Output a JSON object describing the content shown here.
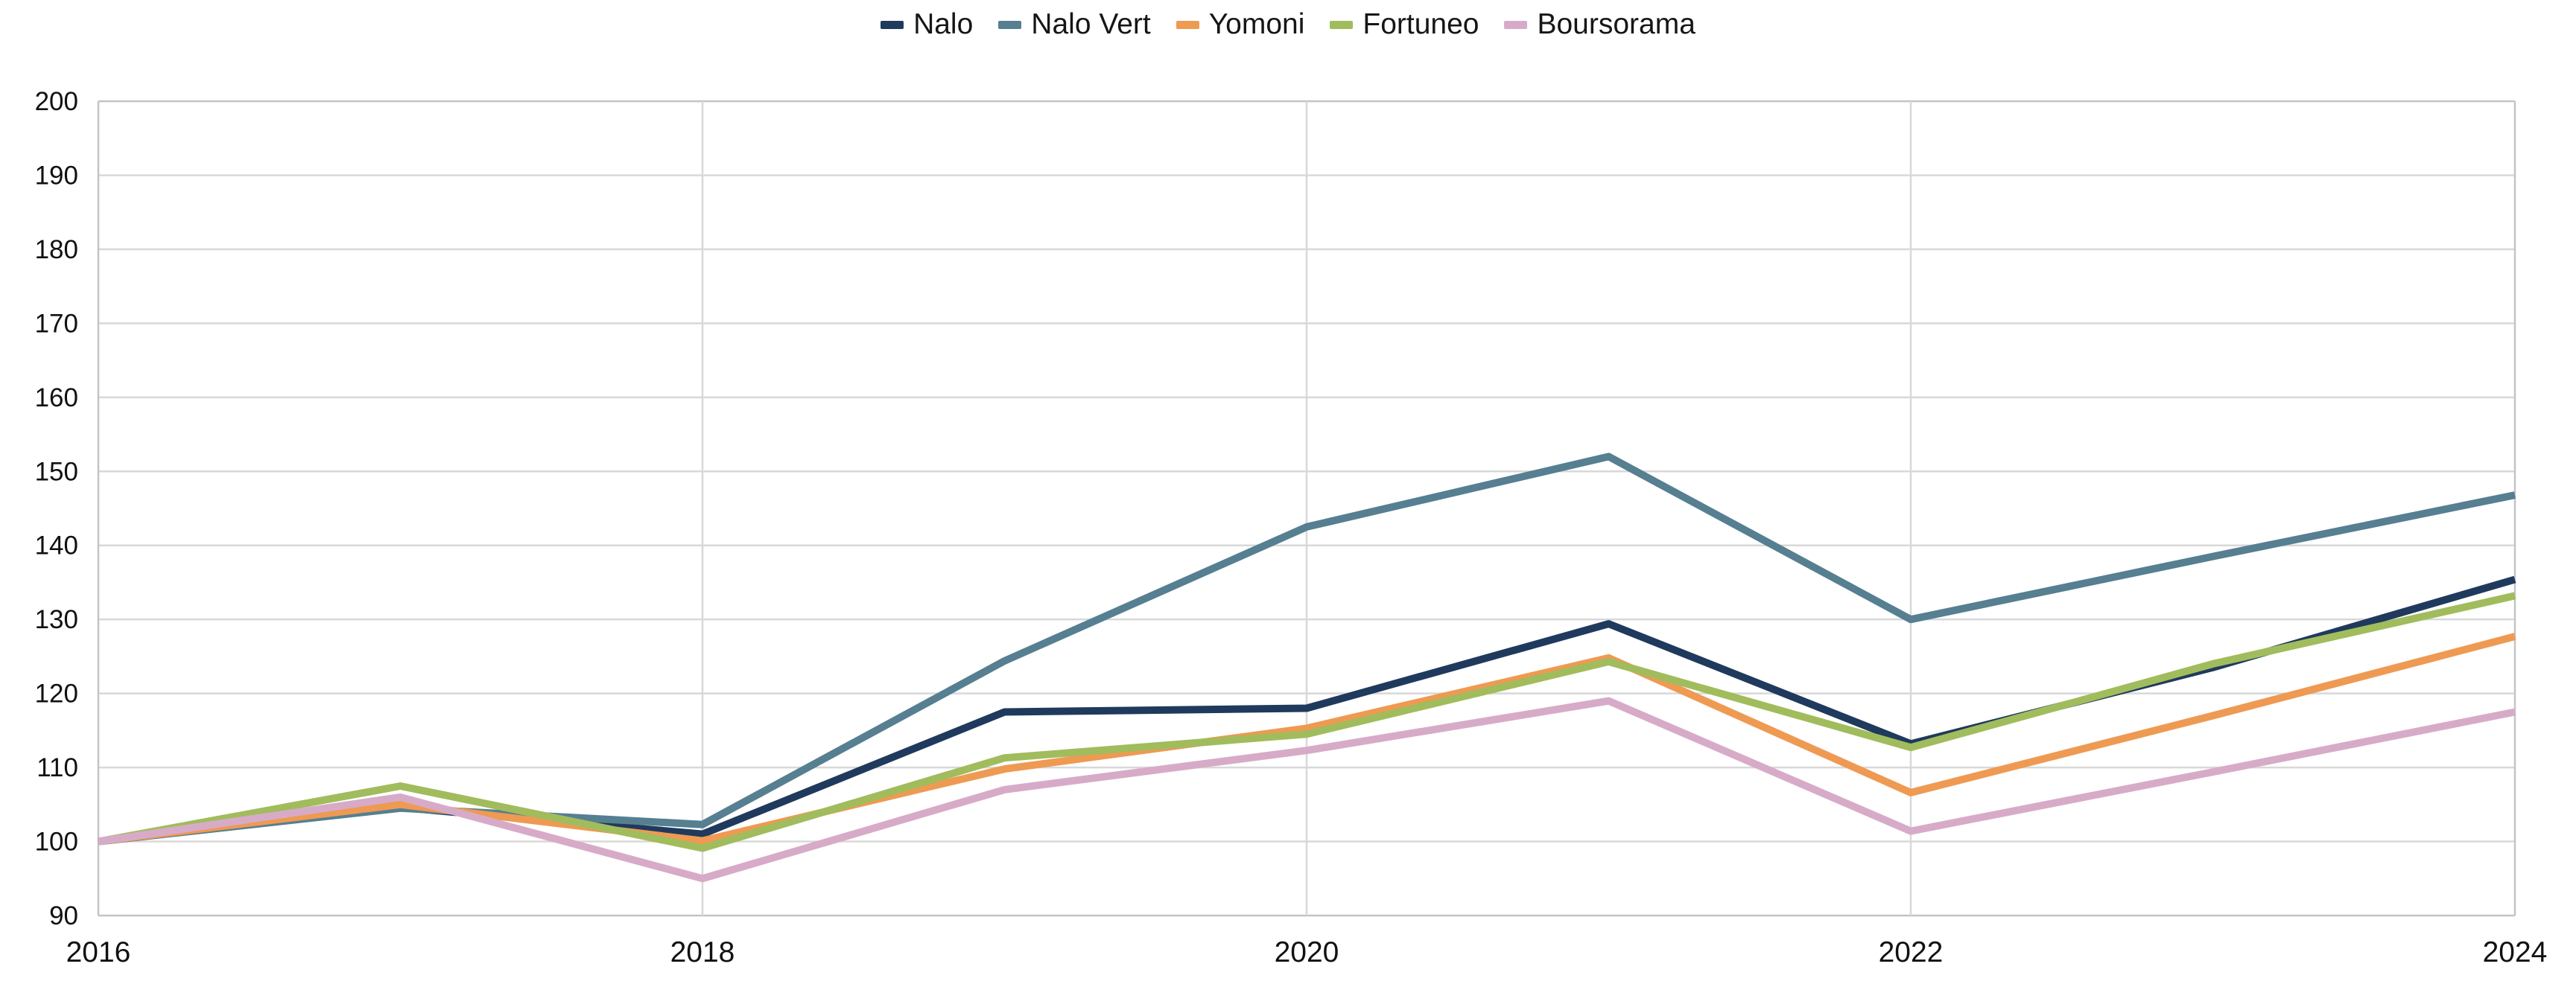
{
  "chart_data": {
    "type": "line",
    "title": "",
    "xlabel": "",
    "ylabel": "",
    "x": [
      2016,
      2017,
      2018,
      2019,
      2020,
      2021,
      2022,
      2023,
      2024
    ],
    "x_tick_labels": [
      "2016",
      "2018",
      "2020",
      "2022",
      "2024"
    ],
    "ylim": [
      90,
      200
    ],
    "y_tick_step": 10,
    "y_tick_labels": [
      "90",
      "100",
      "110",
      "120",
      "130",
      "140",
      "150",
      "160",
      "170",
      "180",
      "190",
      "200"
    ],
    "grid": true,
    "legend_position": "top",
    "series": [
      {
        "name": "Nalo",
        "color": "#1f3a5c",
        "values": [
          100,
          104.6,
          101.0,
          117.5,
          118.0,
          129.4,
          113.2,
          123.5,
          135.4
        ]
      },
      {
        "name": "Nalo Vert",
        "color": "#567f91",
        "values": [
          100,
          104.5,
          102.3,
          124.4,
          142.5,
          152.0,
          130.0,
          138.5,
          146.8
        ]
      },
      {
        "name": "Yomoni",
        "color": "#ee9a53",
        "values": [
          100,
          105.0,
          100.1,
          109.8,
          115.3,
          124.8,
          106.6,
          117.0,
          127.7
        ]
      },
      {
        "name": "Fortuneo",
        "color": "#a1bc5c",
        "values": [
          100,
          107.5,
          99.1,
          111.3,
          114.5,
          124.3,
          112.7,
          124.0,
          133.2
        ]
      },
      {
        "name": "Boursorama",
        "color": "#d7abc8",
        "values": [
          100,
          106.0,
          95.0,
          107.0,
          112.3,
          119.0,
          101.4,
          109.4,
          117.5
        ]
      }
    ]
  },
  "colors": {
    "background": "#ffffff",
    "gridline": "#d8d8d8",
    "plot_border": "#c4c4c4",
    "tick_text": "#111111",
    "legend_text": "#161616"
  }
}
